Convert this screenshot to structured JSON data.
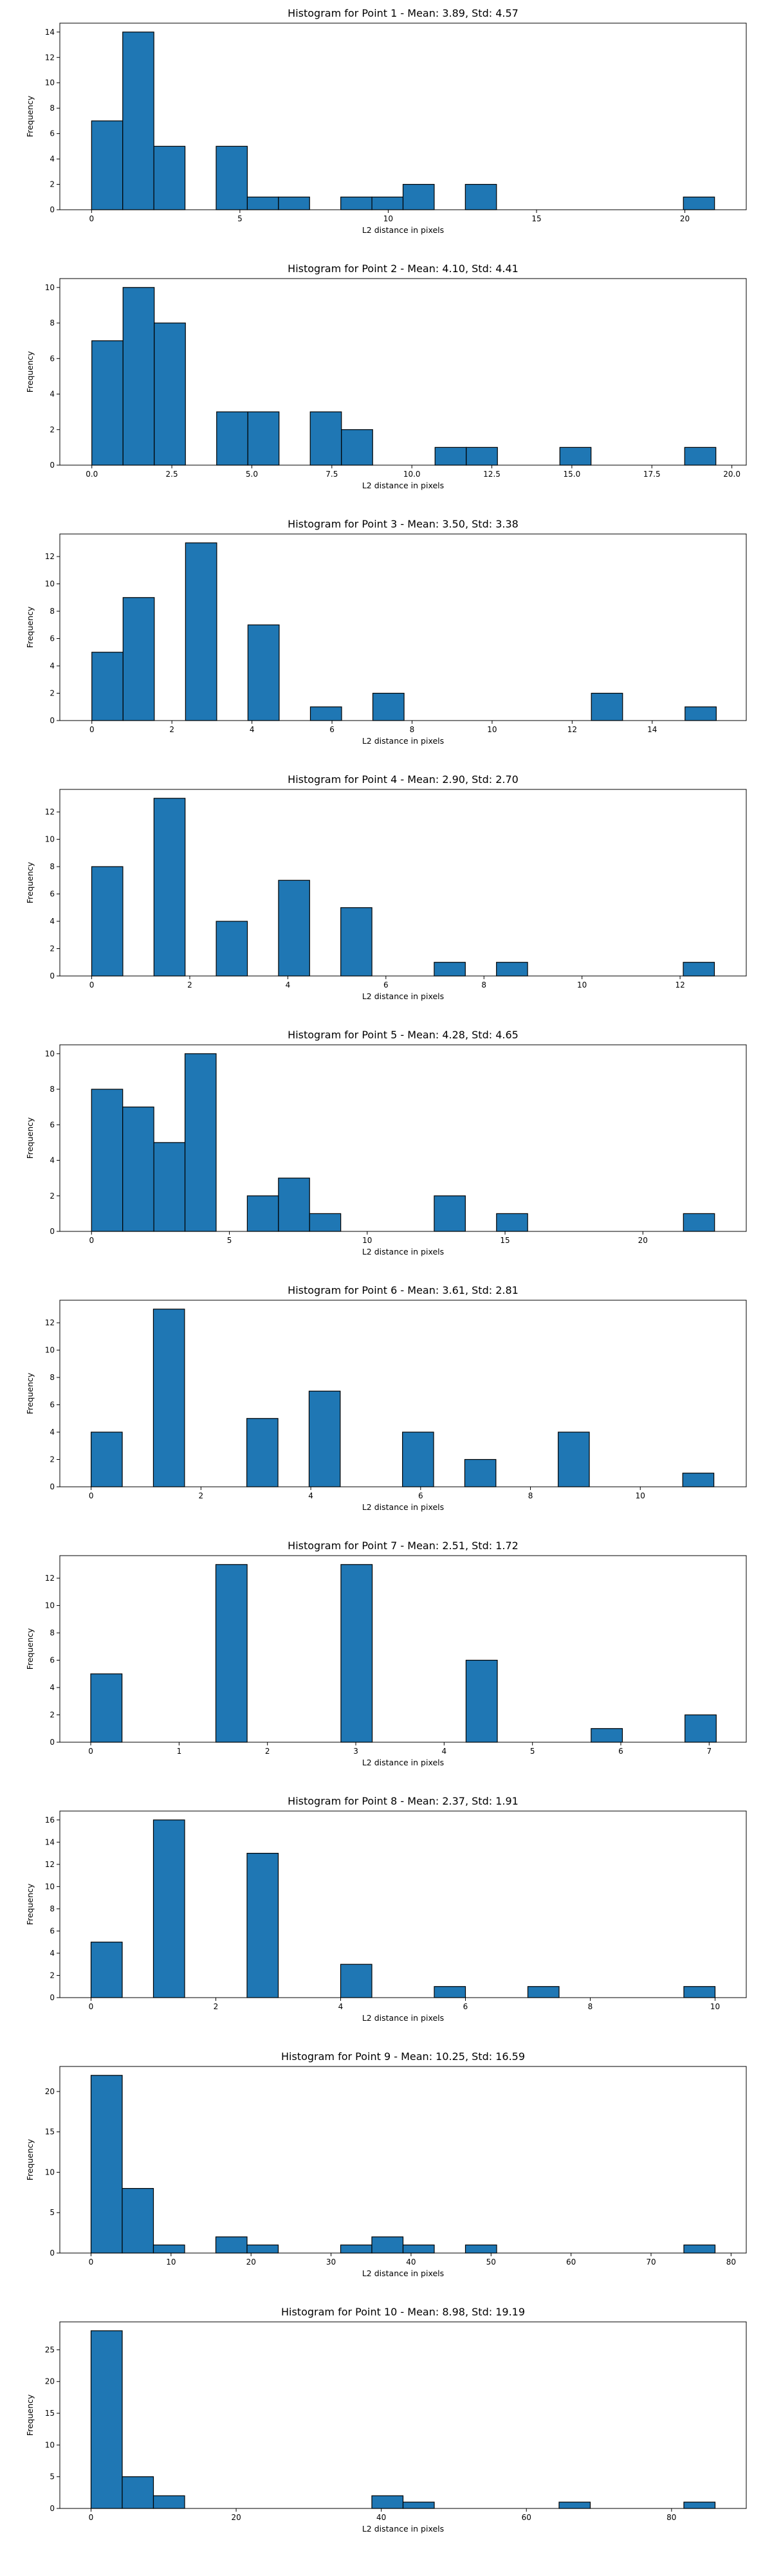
{
  "chart_data": [
    {
      "type": "bar",
      "title": "Histogram for Point 1 - Mean: 3.89, Std: 4.57",
      "xlabel": "L2 distance in pixels",
      "ylabel": "Frequency",
      "xlim": [
        -1.07,
        22.07
      ],
      "ylim": [
        0,
        14.7
      ],
      "xticks": [
        0,
        5,
        10,
        15,
        20
      ],
      "xtick_labels": [
        "0",
        "5",
        "10",
        "15",
        "20"
      ],
      "yticks": [
        0,
        2,
        4,
        6,
        8,
        10,
        12,
        14
      ],
      "ytick_labels": [
        "0",
        "2",
        "4",
        "6",
        "8",
        "10",
        "12",
        "14"
      ],
      "bin_edges": [
        0.0,
        1.05,
        2.1,
        3.15,
        4.2,
        5.25,
        6.3,
        7.35,
        8.4,
        9.45,
        10.5,
        11.55,
        12.6,
        13.65,
        14.7,
        15.75,
        16.8,
        17.85,
        18.9,
        19.95,
        21.0
      ],
      "values": [
        7,
        14,
        5,
        0,
        5,
        1,
        1,
        0,
        1,
        1,
        2,
        0,
        2,
        0,
        0,
        0,
        0,
        0,
        0,
        1
      ]
    },
    {
      "type": "bar",
      "title": "Histogram for Point 2 - Mean: 4.10, Std: 4.41",
      "xlabel": "L2 distance in pixels",
      "ylabel": "Frequency",
      "xlim": [
        -1.0,
        20.45
      ],
      "ylim": [
        0,
        10.5
      ],
      "xticks": [
        0,
        2.5,
        5,
        7.5,
        10,
        12.5,
        15,
        17.5,
        20
      ],
      "xtick_labels": [
        "0.0",
        "2.5",
        "5.0",
        "7.5",
        "10.0",
        "12.5",
        "15.0",
        "17.5",
        "20.0"
      ],
      "yticks": [
        0,
        2,
        4,
        6,
        8,
        10
      ],
      "ytick_labels": [
        "0",
        "2",
        "4",
        "6",
        "8",
        "10"
      ],
      "bin_edges": [
        0.0,
        0.975,
        1.95,
        2.925,
        3.9,
        4.875,
        5.85,
        6.825,
        7.8,
        8.775,
        9.75,
        10.725,
        11.7,
        12.675,
        13.65,
        14.625,
        15.6,
        16.575,
        17.55,
        18.525,
        19.5
      ],
      "values": [
        7,
        10,
        8,
        0,
        3,
        3,
        0,
        3,
        2,
        0,
        0,
        1,
        1,
        0,
        0,
        1,
        0,
        0,
        0,
        1
      ]
    },
    {
      "type": "bar",
      "title": "Histogram for Point 3 - Mean: 3.50, Std: 3.38",
      "xlabel": "L2 distance in pixels",
      "ylabel": "Frequency",
      "xlim": [
        -0.8,
        16.35
      ],
      "ylim": [
        0,
        13.65
      ],
      "xticks": [
        0,
        2,
        4,
        6,
        8,
        10,
        12,
        14
      ],
      "xtick_labels": [
        "0",
        "2",
        "4",
        "6",
        "8",
        "10",
        "12",
        "14"
      ],
      "yticks": [
        0,
        2,
        4,
        6,
        8,
        10,
        12
      ],
      "ytick_labels": [
        "0",
        "2",
        "4",
        "6",
        "8",
        "10",
        "12"
      ],
      "bin_edges": [
        0.0,
        0.78,
        1.56,
        2.34,
        3.12,
        3.9,
        4.68,
        5.46,
        6.24,
        7.02,
        7.8,
        8.58,
        9.36,
        10.14,
        10.92,
        11.7,
        12.48,
        13.26,
        14.04,
        14.82,
        15.6
      ],
      "values": [
        5,
        9,
        0,
        13,
        0,
        7,
        0,
        1,
        0,
        2,
        0,
        0,
        0,
        0,
        0,
        0,
        2,
        0,
        0,
        1
      ]
    },
    {
      "type": "bar",
      "title": "Histogram for Point 4 - Mean: 2.90, Std: 2.70",
      "xlabel": "L2 distance in pixels",
      "ylabel": "Frequency",
      "xlim": [
        -0.65,
        13.35
      ],
      "ylim": [
        0,
        13.65
      ],
      "xticks": [
        0,
        2,
        4,
        6,
        8,
        10,
        12
      ],
      "xtick_labels": [
        "0",
        "2",
        "4",
        "6",
        "8",
        "10",
        "12"
      ],
      "yticks": [
        0,
        2,
        4,
        6,
        8,
        10,
        12
      ],
      "ytick_labels": [
        "0",
        "2",
        "4",
        "6",
        "8",
        "10",
        "12"
      ],
      "bin_edges": [
        0.0,
        0.635,
        1.27,
        1.905,
        2.54,
        3.175,
        3.81,
        4.445,
        5.08,
        5.715,
        6.35,
        6.985,
        7.62,
        8.255,
        8.89,
        9.525,
        10.16,
        10.795,
        11.43,
        12.065,
        12.7
      ],
      "values": [
        8,
        0,
        13,
        0,
        4,
        0,
        7,
        0,
        5,
        0,
        0,
        1,
        0,
        1,
        0,
        0,
        0,
        0,
        0,
        1
      ]
    },
    {
      "type": "bar",
      "title": "Histogram for Point 5 - Mean: 4.28, Std: 4.65",
      "xlabel": "L2 distance in pixels",
      "ylabel": "Frequency",
      "xlim": [
        -1.15,
        23.75
      ],
      "ylim": [
        0,
        10.5
      ],
      "xticks": [
        0,
        5,
        10,
        15,
        20
      ],
      "xtick_labels": [
        "0",
        "5",
        "10",
        "15",
        "20"
      ],
      "yticks": [
        0,
        2,
        4,
        6,
        8,
        10
      ],
      "ytick_labels": [
        "0",
        "2",
        "4",
        "6",
        "8",
        "10"
      ],
      "bin_edges": [
        0.0,
        1.13,
        2.26,
        3.39,
        4.52,
        5.65,
        6.78,
        7.91,
        9.04,
        10.17,
        11.3,
        12.43,
        13.56,
        14.69,
        15.82,
        16.95,
        18.08,
        19.21,
        20.34,
        21.47,
        22.6
      ],
      "values": [
        8,
        7,
        5,
        10,
        0,
        2,
        3,
        1,
        0,
        0,
        0,
        2,
        0,
        1,
        0,
        0,
        0,
        0,
        0,
        1
      ]
    },
    {
      "type": "bar",
      "title": "Histogram for Point 6 - Mean: 3.61, Std: 2.81",
      "xlabel": "L2 distance in pixels",
      "ylabel": "Frequency",
      "xlim": [
        -0.57,
        11.93
      ],
      "ylim": [
        0,
        13.65
      ],
      "xticks": [
        0,
        2,
        4,
        6,
        8,
        10
      ],
      "xtick_labels": [
        "0",
        "2",
        "4",
        "6",
        "8",
        "10"
      ],
      "yticks": [
        0,
        2,
        4,
        6,
        8,
        10,
        12
      ],
      "ytick_labels": [
        "0",
        "2",
        "4",
        "6",
        "8",
        "10",
        "12"
      ],
      "bin_edges": [
        0.0,
        0.567,
        1.134,
        1.701,
        2.268,
        2.835,
        3.402,
        3.969,
        4.536,
        5.103,
        5.67,
        6.237,
        6.804,
        7.371,
        7.938,
        8.505,
        9.072,
        9.639,
        10.206,
        10.773,
        11.34
      ],
      "values": [
        4,
        0,
        13,
        0,
        0,
        5,
        0,
        7,
        0,
        0,
        4,
        0,
        2,
        0,
        0,
        4,
        0,
        0,
        0,
        1
      ]
    },
    {
      "type": "bar",
      "title": "Histogram for Point 7 - Mean: 2.51, Std: 1.72",
      "xlabel": "L2 distance in pixels",
      "ylabel": "Frequency",
      "xlim": [
        -0.35,
        7.42
      ],
      "ylim": [
        0,
        13.65
      ],
      "xticks": [
        0,
        1,
        2,
        3,
        4,
        5,
        6,
        7
      ],
      "xtick_labels": [
        "0",
        "1",
        "2",
        "3",
        "4",
        "5",
        "6",
        "7"
      ],
      "yticks": [
        0,
        2,
        4,
        6,
        8,
        10,
        12
      ],
      "ytick_labels": [
        "0",
        "2",
        "4",
        "6",
        "8",
        "10",
        "12"
      ],
      "bin_edges": [
        0.0,
        0.354,
        0.708,
        1.062,
        1.416,
        1.77,
        2.124,
        2.478,
        2.832,
        3.186,
        3.54,
        3.894,
        4.248,
        4.602,
        4.956,
        5.31,
        5.664,
        6.018,
        6.372,
        6.726,
        7.08
      ],
      "values": [
        5,
        0,
        0,
        0,
        13,
        0,
        0,
        0,
        13,
        0,
        0,
        0,
        6,
        0,
        0,
        0,
        1,
        0,
        0,
        2
      ]
    },
    {
      "type": "bar",
      "title": "Histogram for Point 8 - Mean: 2.37, Std: 1.91",
      "xlabel": "L2 distance in pixels",
      "ylabel": "Frequency",
      "xlim": [
        -0.5,
        10.5
      ],
      "ylim": [
        0,
        16.8
      ],
      "xticks": [
        0,
        2,
        4,
        6,
        8,
        10
      ],
      "xtick_labels": [
        "0",
        "2",
        "4",
        "6",
        "8",
        "10"
      ],
      "yticks": [
        0,
        2,
        4,
        6,
        8,
        10,
        12,
        14,
        16
      ],
      "ytick_labels": [
        "0",
        "2",
        "4",
        "6",
        "8",
        "10",
        "12",
        "14",
        "16"
      ],
      "bin_edges": [
        0.0,
        0.5,
        1.0,
        1.5,
        2.0,
        2.5,
        3.0,
        3.5,
        4.0,
        4.5,
        5.0,
        5.5,
        6.0,
        6.5,
        7.0,
        7.5,
        8.0,
        8.5,
        9.0,
        9.5,
        10.0
      ],
      "values": [
        5,
        0,
        16,
        0,
        0,
        13,
        0,
        0,
        3,
        0,
        0,
        1,
        0,
        0,
        1,
        0,
        0,
        0,
        0,
        1
      ]
    },
    {
      "type": "bar",
      "title": "Histogram for Point 9 - Mean: 10.25, Std: 16.59",
      "xlabel": "L2 distance in pixels",
      "ylabel": "Frequency",
      "xlim": [
        -3.9,
        81.9
      ],
      "ylim": [
        0,
        23.1
      ],
      "xticks": [
        0,
        10,
        20,
        30,
        40,
        50,
        60,
        70,
        80
      ],
      "xtick_labels": [
        "0",
        "10",
        "20",
        "30",
        "40",
        "50",
        "60",
        "70",
        "80"
      ],
      "yticks": [
        0,
        5,
        10,
        15,
        20
      ],
      "ytick_labels": [
        "0",
        "5",
        "10",
        "15",
        "20"
      ],
      "bin_edges": [
        0.0,
        3.9,
        7.8,
        11.7,
        15.6,
        19.5,
        23.4,
        27.3,
        31.2,
        35.1,
        39.0,
        42.9,
        46.8,
        50.7,
        54.6,
        58.5,
        62.4,
        66.3,
        70.2,
        74.1,
        78.0
      ],
      "values": [
        22,
        8,
        1,
        0,
        2,
        1,
        0,
        0,
        1,
        2,
        1,
        0,
        1,
        0,
        0,
        0,
        0,
        0,
        0,
        1
      ]
    },
    {
      "type": "bar",
      "title": "Histogram for Point 10 - Mean: 8.98, Std: 19.19",
      "xlabel": "L2 distance in pixels",
      "ylabel": "Frequency",
      "xlim": [
        -4.3,
        90.3
      ],
      "ylim": [
        0,
        29.4
      ],
      "xticks": [
        0,
        20,
        40,
        60,
        80
      ],
      "xtick_labels": [
        "0",
        "20",
        "40",
        "60",
        "80"
      ],
      "yticks": [
        0,
        5,
        10,
        15,
        20,
        25
      ],
      "ytick_labels": [
        "0",
        "5",
        "10",
        "15",
        "20",
        "25"
      ],
      "bin_edges": [
        0.0,
        4.3,
        8.6,
        12.9,
        17.2,
        21.5,
        25.8,
        30.1,
        34.4,
        38.7,
        43.0,
        47.3,
        51.6,
        55.9,
        60.2,
        64.5,
        68.8,
        73.1,
        77.4,
        81.7,
        86.0
      ],
      "values": [
        28,
        5,
        2,
        0,
        0,
        0,
        0,
        0,
        0,
        2,
        1,
        0,
        0,
        0,
        0,
        1,
        0,
        0,
        0,
        1
      ]
    }
  ],
  "colors": {
    "bar_fill": "#1f77b4",
    "bar_edge": "#000000",
    "axes": "#000000",
    "background": "#ffffff"
  }
}
